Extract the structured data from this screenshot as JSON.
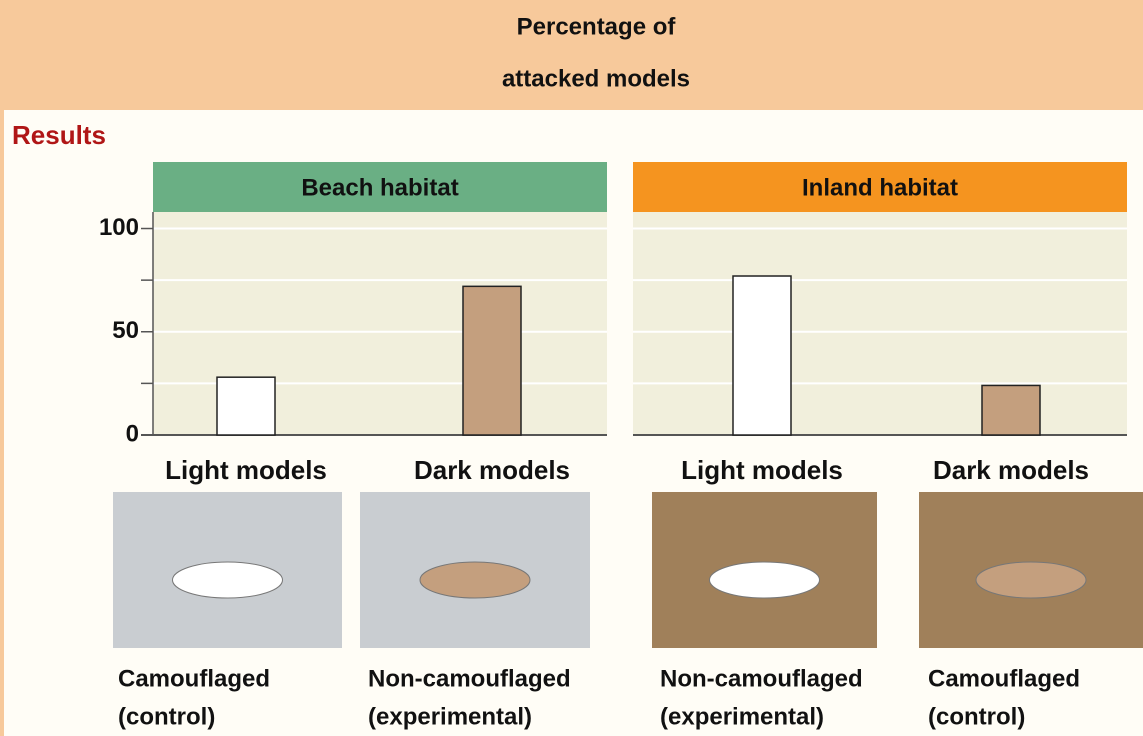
{
  "header": {
    "lines": [
      "Percentage of",
      "attacked models"
    ]
  },
  "section": "Results",
  "chart_data": [
    {
      "type": "bar",
      "title": "Beach habitat",
      "title_color": "#6aaf84",
      "categories": [
        "Light models",
        "Dark models"
      ],
      "values": [
        28,
        72
      ],
      "colors": [
        "#ffffff",
        "#c49f7e"
      ],
      "ylim": [
        0,
        108
      ],
      "yticks": [
        0,
        50,
        100
      ],
      "minor_gridlines": [
        25,
        75
      ],
      "grid": true,
      "show_y_axis": true,
      "captions": [
        [
          "Camouflaged",
          "(control)"
        ],
        [
          "Non-camouflaged",
          "(experimental)"
        ]
      ],
      "photo_background": "#c9cdd1"
    },
    {
      "type": "bar",
      "title": "Inland habitat",
      "title_color": "#f5941f",
      "categories": [
        "Light models",
        "Dark models"
      ],
      "values": [
        77,
        24
      ],
      "colors": [
        "#ffffff",
        "#c49f7e"
      ],
      "ylim": [
        0,
        108
      ],
      "yticks": [
        0,
        50,
        100
      ],
      "minor_gridlines": [
        25,
        75
      ],
      "grid": true,
      "show_y_axis": false,
      "captions": [
        [
          "Non-camouflaged",
          "(experimental)"
        ],
        [
          "Camouflaged",
          "(control)"
        ]
      ],
      "photo_background": "#a0805a"
    }
  ]
}
